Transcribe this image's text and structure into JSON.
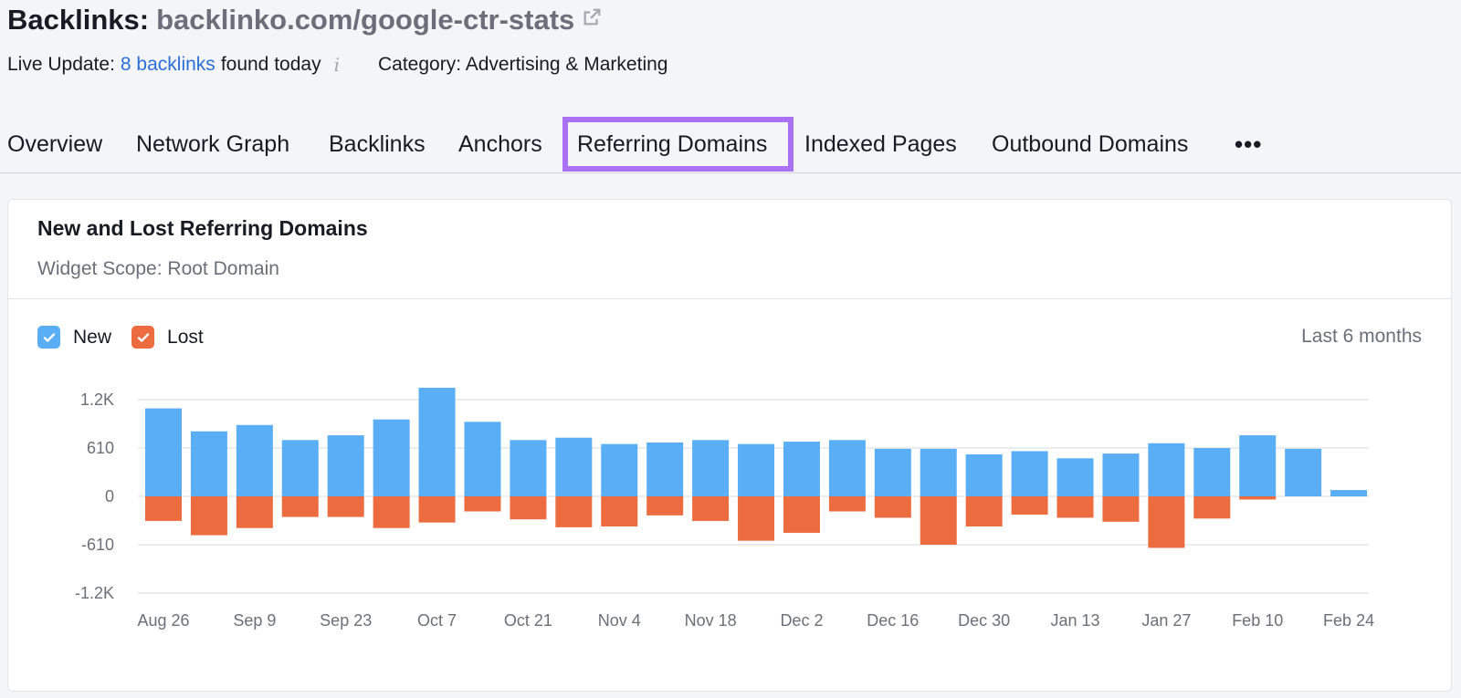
{
  "header": {
    "title_label": "Backlinks:",
    "domain": "backlinko.com/google-ctr-stats",
    "live_update_prefix": "Live Update:",
    "live_update_link": "8 backlinks",
    "live_update_suffix": "found today",
    "info_icon": "i",
    "category": "Category: Advertising & Marketing"
  },
  "tabs": [
    {
      "label": "Overview"
    },
    {
      "label": "Network Graph"
    },
    {
      "label": "Backlinks"
    },
    {
      "label": "Anchors"
    },
    {
      "label": "Referring Domains",
      "active": true
    },
    {
      "label": "Indexed Pages"
    },
    {
      "label": "Outbound Domains"
    },
    {
      "label": "•••"
    }
  ],
  "widget": {
    "title": "New and Lost Referring Domains",
    "scope": "Widget Scope: Root Domain",
    "legend_new": "New",
    "legend_lost": "Lost",
    "period": "Last 6 months"
  },
  "colors": {
    "new": "#5aaef6",
    "lost": "#ec6c3f",
    "active_tab_border": "#a972f4",
    "link": "#2b6fd6"
  },
  "chart_data": {
    "type": "bar",
    "title": "New and Lost Referring Domains",
    "ylim": [
      -1220,
      1220
    ],
    "yticks": [
      1220,
      610,
      0,
      -610,
      -1220
    ],
    "ytick_labels": [
      "1.2K",
      "610",
      "0",
      "-610",
      "-1.2K"
    ],
    "x_tick_labels": [
      "Aug 26",
      "Sep 9",
      "Sep 23",
      "Oct 7",
      "Oct 21",
      "Nov 4",
      "Nov 18",
      "Dec 2",
      "Dec 16",
      "Dec 30",
      "Jan 13",
      "Jan 27",
      "Feb 10",
      "Feb 24"
    ],
    "series": [
      {
        "name": "New",
        "values": [
          1110,
          820,
          900,
          710,
          770,
          970,
          1370,
          940,
          710,
          740,
          660,
          680,
          710,
          660,
          690,
          710,
          600,
          600,
          530,
          570,
          480,
          540,
          670,
          610,
          770,
          600,
          80
        ]
      },
      {
        "name": "Lost",
        "values": [
          -310,
          -490,
          -400,
          -260,
          -260,
          -400,
          -330,
          -190,
          -290,
          -390,
          -380,
          -240,
          -310,
          -560,
          -460,
          -190,
          -270,
          -610,
          -380,
          -230,
          -270,
          -320,
          -650,
          -280,
          -40,
          0,
          0
        ]
      }
    ]
  }
}
